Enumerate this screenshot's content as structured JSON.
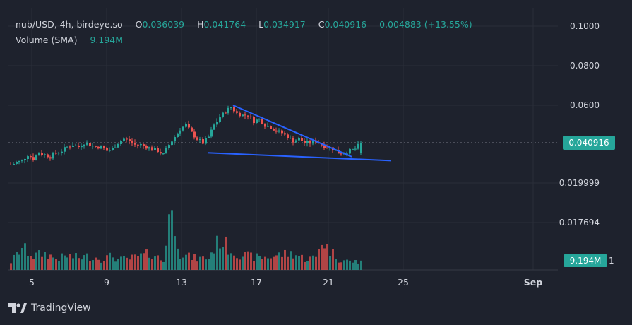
{
  "header": {
    "symbol": "nub/USD, 4h, birdeye.so",
    "open_label": "O",
    "open": "0.036039",
    "high_label": "H",
    "high": "0.041764",
    "low_label": "L",
    "low": "0.034917",
    "close_label": "C",
    "close": "0.040916",
    "change": "0.004883 (+13.55%)",
    "volume_label": "Volume (SMA)",
    "volume_value": "9.194M"
  },
  "price_axis": [
    "0.1000",
    "0.0800",
    "0.0600",
    "0.019999",
    "-0.017694"
  ],
  "current_price_badge": "0.040916",
  "volume_badge": "9.194M",
  "volume_badge_tail": "1",
  "time_axis": [
    "5",
    "9",
    "13",
    "17",
    "21",
    "25",
    "Sep"
  ],
  "brand": "TradingView",
  "colors": {
    "up": "#26a69a",
    "down": "#ef5350",
    "trendline": "#2962ff",
    "background": "#1e222d"
  },
  "chart_data": {
    "type": "candlestick",
    "interval": "4h",
    "last_close": 0.040916,
    "ohlc_last": {
      "open": 0.036039,
      "high": 0.041764,
      "low": 0.034917,
      "close": 0.040916
    },
    "close_path": [
      [
        0,
        0.03
      ],
      [
        2,
        0.031
      ],
      [
        4,
        0.032
      ],
      [
        6,
        0.035
      ],
      [
        8,
        0.033
      ],
      [
        10,
        0.036
      ],
      [
        12,
        0.035
      ],
      [
        14,
        0.034
      ],
      [
        16,
        0.036
      ],
      [
        18,
        0.037
      ],
      [
        20,
        0.039
      ],
      [
        22,
        0.04
      ],
      [
        24,
        0.039
      ],
      [
        26,
        0.041
      ],
      [
        28,
        0.04
      ],
      [
        30,
        0.039
      ],
      [
        32,
        0.039
      ],
      [
        34,
        0.037
      ],
      [
        36,
        0.038
      ],
      [
        38,
        0.041
      ],
      [
        40,
        0.043
      ],
      [
        42,
        0.042
      ],
      [
        44,
        0.04
      ],
      [
        46,
        0.04
      ],
      [
        48,
        0.039
      ],
      [
        50,
        0.038
      ],
      [
        52,
        0.037
      ],
      [
        54,
        0.035
      ],
      [
        56,
        0.04
      ],
      [
        58,
        0.044
      ],
      [
        60,
        0.048
      ],
      [
        62,
        0.05
      ],
      [
        64,
        0.046
      ],
      [
        66,
        0.043
      ],
      [
        68,
        0.041
      ],
      [
        70,
        0.044
      ],
      [
        72,
        0.05
      ],
      [
        74,
        0.054
      ],
      [
        76,
        0.057
      ],
      [
        78,
        0.059
      ],
      [
        80,
        0.056
      ],
      [
        82,
        0.055
      ],
      [
        84,
        0.055
      ],
      [
        86,
        0.052
      ],
      [
        88,
        0.053
      ],
      [
        90,
        0.05
      ],
      [
        92,
        0.049
      ],
      [
        94,
        0.047
      ],
      [
        96,
        0.046
      ],
      [
        98,
        0.044
      ],
      [
        100,
        0.042
      ],
      [
        102,
        0.043
      ],
      [
        104,
        0.041
      ],
      [
        106,
        0.041
      ],
      [
        108,
        0.042
      ],
      [
        110,
        0.04
      ],
      [
        112,
        0.039
      ],
      [
        114,
        0.038
      ],
      [
        116,
        0.036
      ],
      [
        118,
        0.036
      ],
      [
        120,
        0.037
      ],
      [
        122,
        0.038
      ],
      [
        124,
        0.041
      ]
    ],
    "volume_path": [
      [
        0,
        0.15
      ],
      [
        4,
        0.4
      ],
      [
        8,
        0.25
      ],
      [
        12,
        0.3
      ],
      [
        16,
        0.2
      ],
      [
        20,
        0.25
      ],
      [
        24,
        0.22
      ],
      [
        28,
        0.25
      ],
      [
        32,
        0.2
      ],
      [
        36,
        0.25
      ],
      [
        38,
        0.18
      ],
      [
        42,
        0.2
      ],
      [
        46,
        0.25
      ],
      [
        50,
        0.3
      ],
      [
        54,
        0.15
      ],
      [
        56,
        1.0
      ],
      [
        58,
        0.85
      ],
      [
        60,
        0.3
      ],
      [
        62,
        0.25
      ],
      [
        66,
        0.2
      ],
      [
        70,
        0.22
      ],
      [
        72,
        0.4
      ],
      [
        74,
        0.55
      ],
      [
        76,
        0.45
      ],
      [
        78,
        0.35
      ],
      [
        80,
        0.3
      ],
      [
        84,
        0.25
      ],
      [
        88,
        0.22
      ],
      [
        92,
        0.24
      ],
      [
        96,
        0.28
      ],
      [
        100,
        0.3
      ],
      [
        104,
        0.2
      ],
      [
        108,
        0.22
      ],
      [
        110,
        0.55
      ],
      [
        112,
        0.4
      ],
      [
        116,
        0.2
      ],
      [
        120,
        0.15
      ],
      [
        124,
        0.15
      ]
    ],
    "volume_max": 34.7,
    "trendline_upper": [
      [
        79,
        0.06
      ],
      [
        121,
        0.034
      ]
    ],
    "trendline_lower": [
      [
        70,
        0.036
      ],
      [
        135,
        0.032
      ]
    ],
    "y_range": [
      -0.04,
      0.11
    ],
    "grid": true
  }
}
